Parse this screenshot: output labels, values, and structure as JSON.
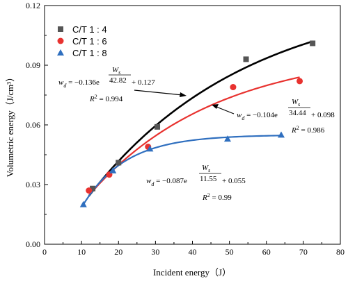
{
  "chart_data": {
    "type": "scatter",
    "xlabel": "Incident energy（J）",
    "ylabel": "Volumetric energy（J/cm³）",
    "xlim": [
      0,
      80
    ],
    "ylim": [
      0,
      0.12
    ],
    "xticks": [
      "0",
      "10",
      "20",
      "30",
      "40",
      "50",
      "60",
      "70",
      "80"
    ],
    "yticks": [
      "0.00",
      "0.03",
      "0.06",
      "0.09",
      "0.12"
    ],
    "grid": false,
    "legend_position": "top-left",
    "series": [
      {
        "name": "C/T  1 : 4",
        "marker": "square",
        "color": "#555555",
        "line_color": "#000000",
        "x": [
          13.0,
          20.0,
          30.5,
          54.5,
          72.5
        ],
        "y": [
          0.028,
          0.041,
          0.059,
          0.093,
          0.101
        ],
        "fit": {
          "a": 0.127,
          "b": 0.136,
          "c": 42.82,
          "x_range": [
            12,
            72.5
          ]
        },
        "equation": {
          "lhs": "w",
          "sub": "d",
          "mid": " = −0.136e",
          "exp_num": "W",
          "exp_num_sub": "s",
          "exp_den": "42.82",
          "tail": " + 0.127",
          "r2_label": "R",
          "r2_sup": "2",
          "r2_val": " = 0.994"
        }
      },
      {
        "name": "C/T  1 : 6",
        "marker": "circle",
        "color": "#e8322f",
        "line_color": "#e8322f",
        "x": [
          12.0,
          17.5,
          28.0,
          51.0,
          69.0
        ],
        "y": [
          0.027,
          0.035,
          0.049,
          0.079,
          0.082
        ],
        "fit": {
          "a": 0.098,
          "b": 0.104,
          "c": 34.44,
          "x_range": [
            12,
            69
          ]
        },
        "equation": {
          "lhs": "w",
          "sub": "d",
          "mid": " = −0.104e",
          "exp_num": "W",
          "exp_num_sub": "s",
          "exp_den": "34.44",
          "tail": " + 0.098",
          "r2_label": "R",
          "r2_sup": "2",
          "r2_val": " = 0.986"
        }
      },
      {
        "name": "C/T  1 : 8",
        "marker": "triangle",
        "color": "#2f6fbf",
        "line_color": "#2f6fbf",
        "x": [
          10.5,
          18.5,
          28.5,
          49.5,
          64.0
        ],
        "y": [
          0.02,
          0.037,
          0.048,
          0.053,
          0.055
        ],
        "fit": {
          "a": 0.055,
          "b": 0.087,
          "c": 11.55,
          "x_range": [
            10.5,
            64
          ]
        },
        "equation": {
          "lhs": "w",
          "sub": "d",
          "mid": " = −0.087e",
          "exp_num": "W",
          "exp_num_sub": "s",
          "exp_den": "11.55",
          "tail": " + 0.055",
          "r2_label": "R",
          "r2_sup": "2",
          "r2_val": " = 0.99"
        }
      }
    ]
  }
}
